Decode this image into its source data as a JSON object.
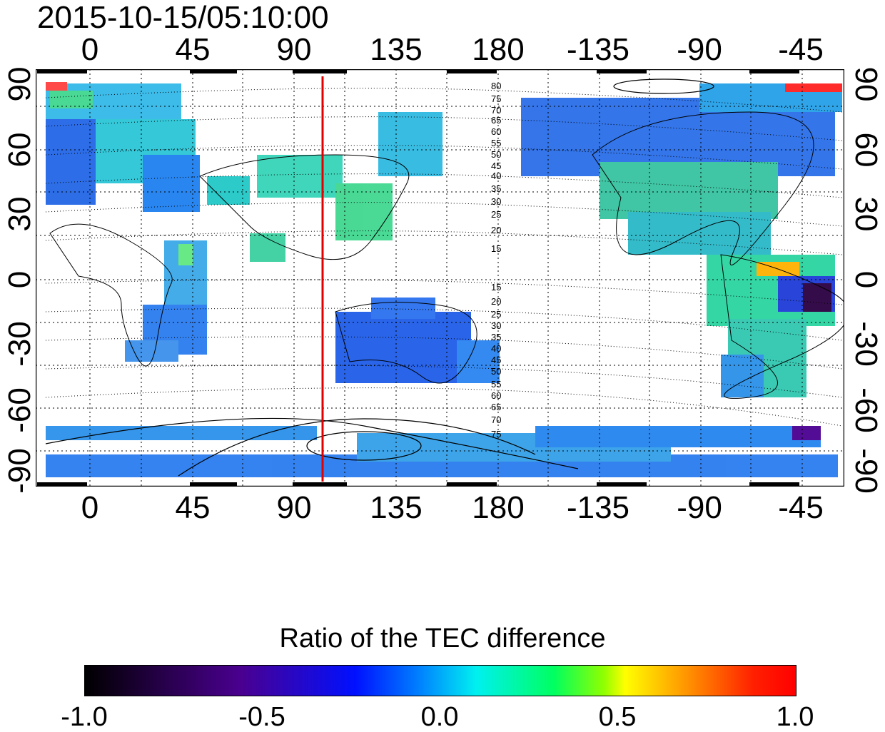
{
  "title": "2015-10-15/05:10:00",
  "map": {
    "top_lon_labels": [
      "0",
      "45",
      "90",
      "135",
      "180",
      "-135",
      "-90",
      "-45"
    ],
    "bottom_lon_labels": [
      "0",
      "45",
      "90",
      "135",
      "180",
      "-135",
      "-90",
      "-45"
    ],
    "left_lat_labels": [
      "90",
      "60",
      "30",
      "0",
      "-30",
      "-60",
      "-90"
    ],
    "right_lat_labels": [
      "90",
      "60",
      "30",
      "0",
      "-30",
      "-60",
      "-90"
    ],
    "contour_labels_north": [
      "80",
      "75",
      "70",
      "65",
      "60",
      "55",
      "50",
      "45",
      "40",
      "35",
      "30",
      "25",
      "20",
      "15"
    ],
    "contour_labels_south": [
      "15",
      "20",
      "25",
      "30",
      "35",
      "40",
      "45",
      "50",
      "55",
      "60",
      "65",
      "70",
      "75"
    ],
    "marker_longitude": 105,
    "marker_color": "#e00000"
  },
  "colorbar": {
    "title": "Ratio of the TEC difference",
    "ticks": [
      "-1.0",
      "-0.5",
      "0.0",
      "0.5",
      "1.0"
    ]
  }
}
